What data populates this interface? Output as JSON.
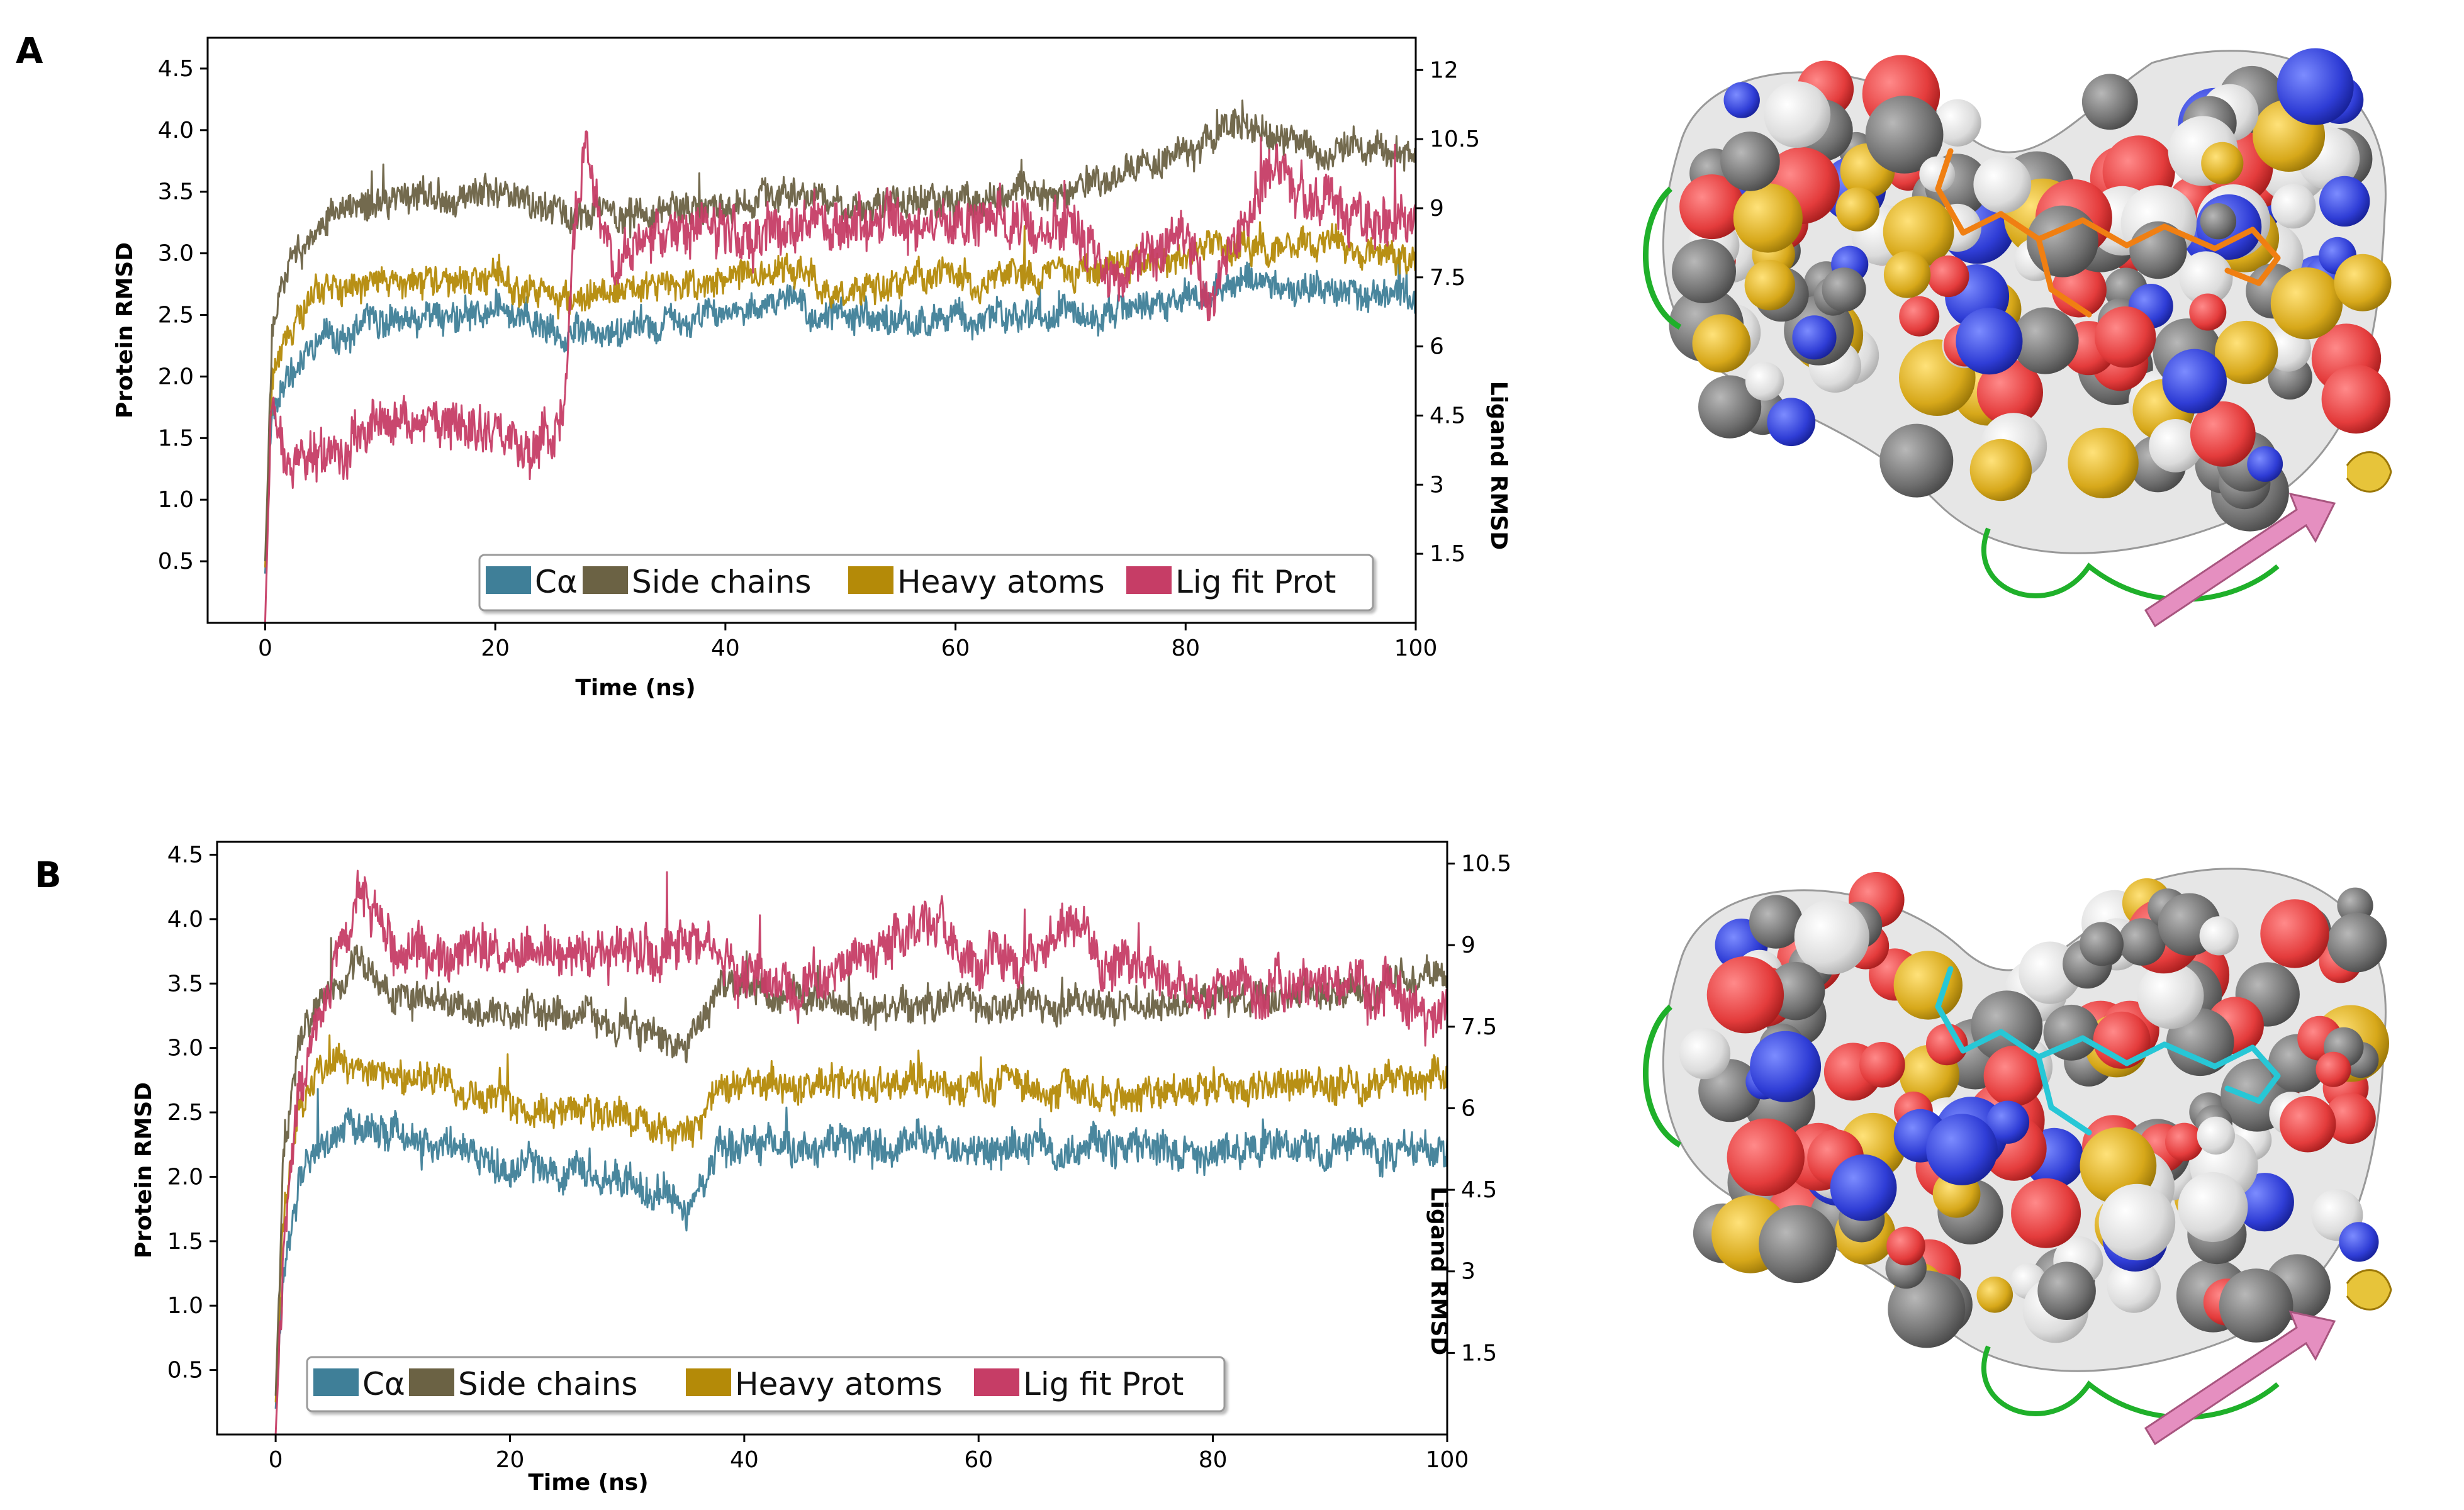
{
  "colors": {
    "calpha": "#3f7f98",
    "side_chains": "#6b6244",
    "heavy_atoms": "#b48a08",
    "lig_fit_prot": "#c63d66"
  },
  "chart_data": [
    {
      "panel": "A",
      "type": "line",
      "xlabel": "Time (ns)",
      "ylabel": "Protein RMSD",
      "y2label": "Ligand RMSD",
      "xlim": [
        -5,
        100
      ],
      "ylim": [
        0,
        4.75
      ],
      "y2lim": [
        0,
        12.7
      ],
      "x_ticks": [
        "0",
        "20",
        "40",
        "60",
        "80",
        "100"
      ],
      "y_ticks": [
        "0.5",
        "1.0",
        "1.5",
        "2.0",
        "2.5",
        "3.0",
        "3.5",
        "4.0",
        "4.5"
      ],
      "y2_ticks": [
        "1.5",
        "3",
        "4.5",
        "6",
        "7.5",
        "9",
        "10.5",
        "12"
      ],
      "legend": [
        "Cα",
        "Side chains",
        "Heavy atoms",
        "Lig fit Prot"
      ],
      "legend_position": "bottom-right",
      "series": [
        {
          "name": "Cα",
          "axis": "left",
          "noise": 0.13,
          "anchors": [
            [
              0,
              0.4
            ],
            [
              0.6,
              1.7
            ],
            [
              2,
              1.95
            ],
            [
              5,
              2.3
            ],
            [
              10,
              2.45
            ],
            [
              20,
              2.55
            ],
            [
              26,
              2.35
            ],
            [
              30,
              2.4
            ],
            [
              40,
              2.5
            ],
            [
              45,
              2.6
            ],
            [
              50,
              2.45
            ],
            [
              60,
              2.45
            ],
            [
              70,
              2.5
            ],
            [
              80,
              2.6
            ],
            [
              85,
              2.8
            ],
            [
              90,
              2.7
            ],
            [
              100,
              2.6
            ]
          ]
        },
        {
          "name": "Side chains",
          "axis": "left",
          "noise": 0.13,
          "anchors": [
            [
              0,
              0.5
            ],
            [
              0.6,
              2.3
            ],
            [
              2,
              2.9
            ],
            [
              5,
              3.3
            ],
            [
              10,
              3.45
            ],
            [
              20,
              3.5
            ],
            [
              26,
              3.3
            ],
            [
              30,
              3.3
            ],
            [
              40,
              3.4
            ],
            [
              45,
              3.5
            ],
            [
              50,
              3.4
            ],
            [
              60,
              3.45
            ],
            [
              70,
              3.5
            ],
            [
              80,
              3.8
            ],
            [
              85,
              4.1
            ],
            [
              90,
              3.85
            ],
            [
              100,
              3.8
            ]
          ]
        },
        {
          "name": "Heavy atoms",
          "axis": "left",
          "noise": 0.13,
          "anchors": [
            [
              0,
              0.45
            ],
            [
              0.6,
              2.0
            ],
            [
              2,
              2.4
            ],
            [
              5,
              2.7
            ],
            [
              10,
              2.8
            ],
            [
              20,
              2.8
            ],
            [
              26,
              2.6
            ],
            [
              30,
              2.7
            ],
            [
              40,
              2.75
            ],
            [
              45,
              2.9
            ],
            [
              50,
              2.7
            ],
            [
              60,
              2.8
            ],
            [
              70,
              2.85
            ],
            [
              80,
              2.95
            ],
            [
              85,
              3.1
            ],
            [
              90,
              3.05
            ],
            [
              100,
              3.0
            ]
          ]
        },
        {
          "name": "Lig fit Prot",
          "axis": "right",
          "noise": 0.55,
          "anchors": [
            [
              0,
              0.0
            ],
            [
              0.5,
              4.5
            ],
            [
              2,
              3.6
            ],
            [
              5,
              3.6
            ],
            [
              10,
              4.2
            ],
            [
              15,
              4.5
            ],
            [
              20,
              3.9
            ],
            [
              25,
              3.8
            ],
            [
              26,
              4.5
            ],
            [
              27,
              9.0
            ],
            [
              28,
              10.5
            ],
            [
              29,
              8.5
            ],
            [
              30,
              8.0
            ],
            [
              40,
              8.5
            ],
            [
              50,
              8.7
            ],
            [
              60,
              8.7
            ],
            [
              70,
              8.6
            ],
            [
              74,
              7.5
            ],
            [
              80,
              8.6
            ],
            [
              82,
              6.8
            ],
            [
              85,
              9.0
            ],
            [
              88,
              10.0
            ],
            [
              90,
              9.3
            ],
            [
              100,
              8.5
            ]
          ]
        }
      ]
    },
    {
      "panel": "B",
      "type": "line",
      "xlabel": "Time (ns)",
      "ylabel": "Protein RMSD",
      "y2label": "Ligand RMSD",
      "xlim": [
        -5,
        100
      ],
      "ylim": [
        0,
        4.6
      ],
      "y2lim": [
        0,
        10.9
      ],
      "x_ticks": [
        "0",
        "20",
        "40",
        "60",
        "80",
        "100"
      ],
      "y_ticks": [
        "0.5",
        "1.0",
        "1.5",
        "2.0",
        "2.5",
        "3.0",
        "3.5",
        "4.0",
        "4.5"
      ],
      "y2_ticks": [
        "1.5",
        "3",
        "4.5",
        "6",
        "7.5",
        "9",
        "10.5"
      ],
      "legend": [
        "Cα",
        "Side chains",
        "Heavy atoms",
        "Lig fit Prot"
      ],
      "legend_position": "bottom-left",
      "series": [
        {
          "name": "Cα",
          "axis": "left",
          "noise": 0.14,
          "anchors": [
            [
              0,
              0.2
            ],
            [
              0.6,
              1.2
            ],
            [
              2,
              2.0
            ],
            [
              5,
              2.4
            ],
            [
              10,
              2.35
            ],
            [
              20,
              2.05
            ],
            [
              30,
              2.0
            ],
            [
              35,
              1.75
            ],
            [
              38,
              2.2
            ],
            [
              40,
              2.25
            ],
            [
              50,
              2.25
            ],
            [
              60,
              2.25
            ],
            [
              70,
              2.2
            ],
            [
              80,
              2.2
            ],
            [
              90,
              2.25
            ],
            [
              100,
              2.2
            ]
          ]
        },
        {
          "name": "Side chains",
          "axis": "left",
          "noise": 0.13,
          "anchors": [
            [
              0,
              0.3
            ],
            [
              0.6,
              2.0
            ],
            [
              2,
              3.1
            ],
            [
              5,
              3.5
            ],
            [
              7,
              3.7
            ],
            [
              10,
              3.4
            ],
            [
              20,
              3.3
            ],
            [
              30,
              3.2
            ],
            [
              35,
              3.0
            ],
            [
              38,
              3.5
            ],
            [
              40,
              3.45
            ],
            [
              50,
              3.3
            ],
            [
              60,
              3.35
            ],
            [
              70,
              3.3
            ],
            [
              80,
              3.4
            ],
            [
              90,
              3.4
            ],
            [
              100,
              3.6
            ]
          ]
        },
        {
          "name": "Heavy atoms",
          "axis": "left",
          "noise": 0.13,
          "anchors": [
            [
              0,
              0.25
            ],
            [
              0.6,
              1.6
            ],
            [
              2,
              2.6
            ],
            [
              5,
              2.9
            ],
            [
              10,
              2.8
            ],
            [
              20,
              2.55
            ],
            [
              30,
              2.5
            ],
            [
              35,
              2.3
            ],
            [
              38,
              2.7
            ],
            [
              40,
              2.75
            ],
            [
              50,
              2.7
            ],
            [
              60,
              2.75
            ],
            [
              70,
              2.65
            ],
            [
              80,
              2.7
            ],
            [
              90,
              2.7
            ],
            [
              100,
              2.8
            ]
          ]
        },
        {
          "name": "Lig fit Prot",
          "axis": "right",
          "noise": 0.45,
          "anchors": [
            [
              0,
              0.0
            ],
            [
              0.6,
              3.0
            ],
            [
              2,
              6.5
            ],
            [
              5,
              8.6
            ],
            [
              7,
              9.8
            ],
            [
              10,
              8.9
            ],
            [
              20,
              8.9
            ],
            [
              30,
              8.8
            ],
            [
              38,
              8.8
            ],
            [
              40,
              8.3
            ],
            [
              45,
              8.3
            ],
            [
              50,
              8.8
            ],
            [
              55,
              9.4
            ],
            [
              60,
              8.8
            ],
            [
              65,
              8.6
            ],
            [
              68,
              9.5
            ],
            [
              70,
              8.8
            ],
            [
              75,
              8.5
            ],
            [
              80,
              8.2
            ],
            [
              90,
              8.3
            ],
            [
              100,
              7.8
            ]
          ]
        }
      ]
    }
  ]
}
